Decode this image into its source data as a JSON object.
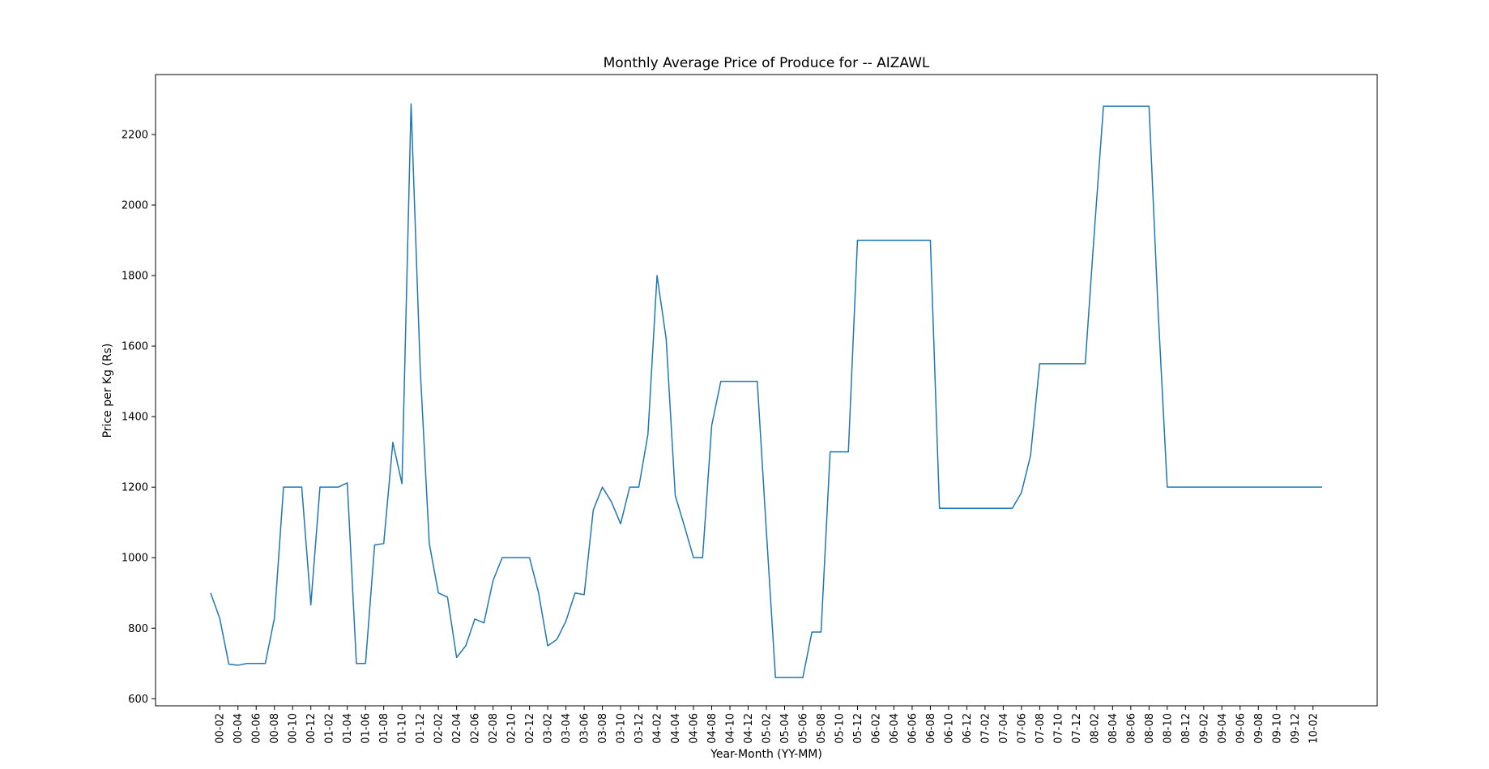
{
  "chart_data": {
    "type": "line",
    "title": "Monthly Average Price of Produce for  --  AIZAWL",
    "xlabel": "Year-Month (YY-MM)",
    "ylabel": "Price per Kg (Rs)",
    "ylim": [
      580,
      2370
    ],
    "yticks": [
      600,
      800,
      1000,
      1200,
      1400,
      1600,
      1800,
      2000,
      2200
    ],
    "grid": false,
    "line_color": "#1f77b4",
    "x": [
      "00-01",
      "00-02",
      "00-03",
      "00-04",
      "00-05",
      "00-06",
      "00-07",
      "00-08",
      "00-09",
      "00-10",
      "00-11",
      "00-12",
      "01-01",
      "01-02",
      "01-03",
      "01-04",
      "01-05",
      "01-06",
      "01-07",
      "01-08",
      "01-09",
      "01-10",
      "01-11",
      "01-12",
      "02-01",
      "02-02",
      "02-03",
      "02-04",
      "02-05",
      "02-06",
      "02-07",
      "02-08",
      "02-09",
      "02-10",
      "02-11",
      "02-12",
      "03-01",
      "03-02",
      "03-03",
      "03-04",
      "03-05",
      "03-06",
      "03-07",
      "03-08",
      "03-09",
      "03-10",
      "03-11",
      "03-12",
      "04-01",
      "04-02",
      "04-03",
      "04-04",
      "04-05",
      "04-06",
      "04-07",
      "04-08",
      "04-09",
      "04-10",
      "04-11",
      "04-12",
      "05-01",
      "05-02",
      "05-03",
      "05-04",
      "05-05",
      "05-06",
      "05-07",
      "05-08",
      "05-09",
      "05-10",
      "05-11",
      "05-12",
      "06-01",
      "06-02",
      "06-03",
      "06-04",
      "06-05",
      "06-06",
      "06-07",
      "06-08",
      "06-09",
      "06-10",
      "06-11",
      "06-12",
      "07-01",
      "07-02",
      "07-03",
      "07-04",
      "07-05",
      "07-06",
      "07-07",
      "07-08",
      "07-09",
      "07-10",
      "07-11",
      "07-12",
      "08-01",
      "08-02",
      "08-03",
      "08-04",
      "08-05",
      "08-06",
      "08-07",
      "08-08",
      "08-09",
      "08-10",
      "08-11",
      "08-12",
      "09-01",
      "09-02",
      "09-03",
      "09-04",
      "09-05",
      "09-06",
      "09-07",
      "09-08",
      "09-09",
      "09-10",
      "09-11",
      "09-12",
      "10-01",
      "10-02",
      "10-03"
    ],
    "xtick_labels": [
      "00-02",
      "00-04",
      "00-06",
      "00-08",
      "00-10",
      "00-12",
      "01-02",
      "01-04",
      "01-06",
      "01-08",
      "01-10",
      "01-12",
      "02-02",
      "02-04",
      "02-06",
      "02-08",
      "02-10",
      "02-12",
      "03-02",
      "03-04",
      "03-06",
      "03-08",
      "03-10",
      "03-12",
      "04-02",
      "04-04",
      "04-06",
      "04-08",
      "04-10",
      "04-12",
      "05-02",
      "05-04",
      "05-06",
      "05-08",
      "05-10",
      "05-12",
      "06-02",
      "06-04",
      "06-06",
      "06-08",
      "06-10",
      "06-12",
      "07-02",
      "07-04",
      "07-06",
      "07-08",
      "07-10",
      "07-12",
      "08-02",
      "08-04",
      "08-06",
      "08-08",
      "08-10",
      "08-12",
      "09-02",
      "09-04",
      "09-06",
      "09-08",
      "09-10",
      "09-12",
      "10-02"
    ],
    "series": [
      {
        "values": [
          900,
          828,
          698,
          695,
          700,
          700,
          700,
          828,
          1200,
          1200,
          1200,
          866,
          1200,
          1200,
          1200,
          1212,
          700,
          700,
          1036,
          1040,
          1327,
          1210,
          2287,
          1538,
          1040,
          900,
          888,
          717,
          750,
          826,
          815,
          935,
          1000,
          1000,
          1000,
          1000,
          900,
          750,
          768,
          820,
          900,
          895,
          1135,
          1200,
          1158,
          1096,
          1200,
          1200,
          1350,
          1800,
          1621,
          1176,
          1090,
          1000,
          1000,
          1375,
          1500,
          1500,
          1500,
          1500,
          1500,
          1075,
          660,
          660,
          660,
          660,
          789,
          789,
          1300,
          1300,
          1300,
          1900,
          1900,
          1900,
          1900,
          1900,
          1900,
          1900,
          1900,
          1900,
          1140,
          1140,
          1140,
          1140,
          1140,
          1140,
          1140,
          1140,
          1140,
          1185,
          1290,
          1550,
          1550,
          1550,
          1550,
          1550,
          1550,
          1925,
          2280,
          2280,
          2280,
          2280,
          2280,
          2280,
          1700,
          1200,
          1200,
          1200,
          1200,
          1200,
          1200,
          1200,
          1200,
          1200,
          1200,
          1200,
          1200,
          1200,
          1200,
          1200,
          1200,
          1200,
          1200
        ]
      }
    ]
  }
}
